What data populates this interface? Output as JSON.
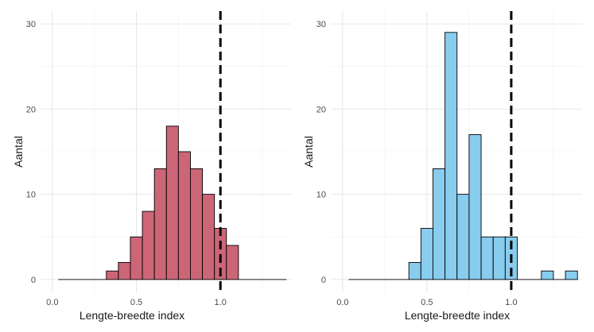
{
  "chart_data": [
    {
      "type": "bar",
      "xlabel": "Lengte-breedte index",
      "ylabel": "Aantal",
      "xlim": [
        -0.07,
        1.42
      ],
      "ylim": [
        -1.5,
        31.5
      ],
      "x_ticks": [
        0.0,
        0.5,
        1.0
      ],
      "x_tick_labels": [
        "0.0",
        "0.5",
        "1.0"
      ],
      "y_ticks": [
        0,
        10,
        20,
        30
      ],
      "y_tick_labels": [
        "0",
        "10",
        "20",
        "30"
      ],
      "grid": true,
      "reference_line_x": 1.0,
      "fill_color": "#CC6677",
      "bin_width": 0.0714,
      "bin_starts": [
        0.0357,
        0.1071,
        0.1786,
        0.25,
        0.3214,
        0.3929,
        0.4643,
        0.5357,
        0.6071,
        0.6786,
        0.75,
        0.8214,
        0.8929,
        0.9643,
        1.0357,
        1.1071,
        1.1786,
        1.25,
        1.3214
      ],
      "values": [
        0,
        0,
        0,
        0,
        1,
        2,
        5,
        8,
        13,
        18,
        15,
        13,
        10,
        6,
        4,
        0,
        0,
        0,
        0
      ]
    },
    {
      "type": "bar",
      "xlabel": "Lengte-breedte index",
      "ylabel": "Aantal",
      "xlim": [
        -0.07,
        1.42
      ],
      "ylim": [
        -1.5,
        31.5
      ],
      "x_ticks": [
        0.0,
        0.5,
        1.0
      ],
      "x_tick_labels": [
        "0.0",
        "0.5",
        "1.0"
      ],
      "y_ticks": [
        0,
        10,
        20,
        30
      ],
      "y_tick_labels": [
        "0",
        "10",
        "20",
        "30"
      ],
      "grid": true,
      "reference_line_x": 1.0,
      "fill_color": "#88CCEE",
      "bin_width": 0.0714,
      "bin_starts": [
        0.0357,
        0.1071,
        0.1786,
        0.25,
        0.3214,
        0.3929,
        0.4643,
        0.5357,
        0.6071,
        0.6786,
        0.75,
        0.8214,
        0.8929,
        0.9643,
        1.0357,
        1.1071,
        1.1786,
        1.25,
        1.3214
      ],
      "values": [
        0,
        0,
        0,
        0,
        0,
        2,
        6,
        13,
        29,
        10,
        17,
        5,
        5,
        5,
        0,
        0,
        1,
        0,
        1
      ]
    }
  ]
}
